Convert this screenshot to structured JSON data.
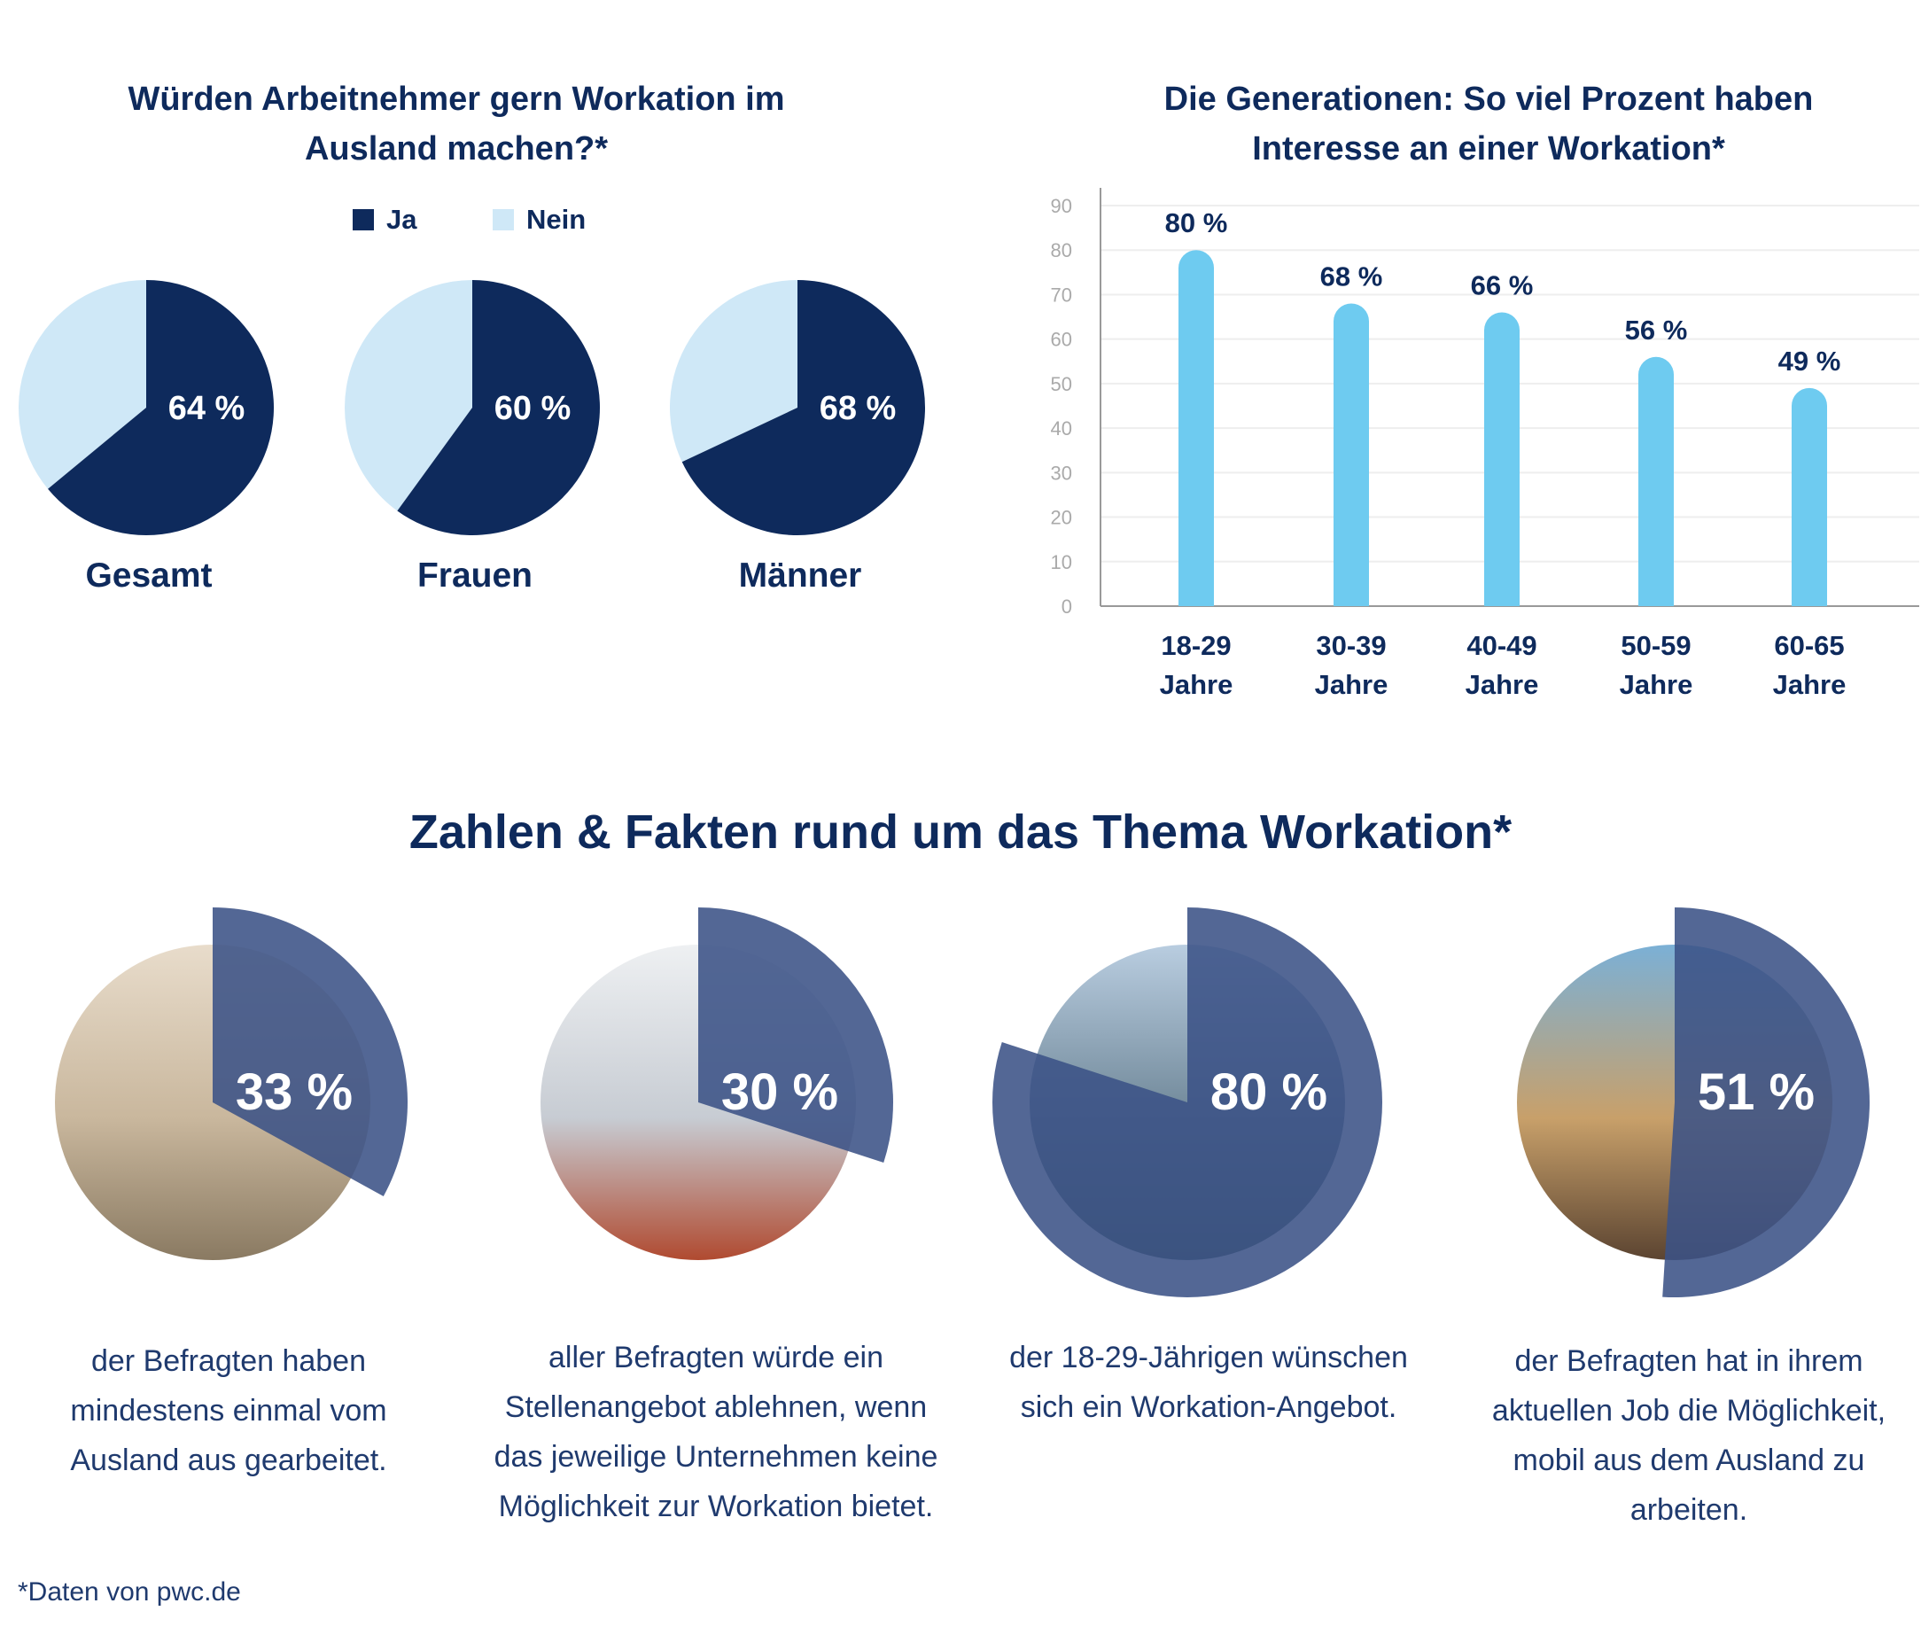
{
  "pies": {
    "title_line1": "Würden Arbeitnehmer gern Workation im",
    "title_line2": "Ausland machen?*",
    "legend": [
      {
        "label": "Ja",
        "color": "#0e2a5c"
      },
      {
        "label": "Nein",
        "color": "#cfe8f7"
      }
    ]
  },
  "bars": {
    "title_line1": "Die Generationen: So viel Prozent haben",
    "title_line2": "Interesse an einer Workation*",
    "bar_color": "#6ecbf0"
  },
  "facts": {
    "title": "Zahlen & Fakten rund um das Thema Workation*",
    "items": [
      {
        "value_label": "33 %",
        "value": 33,
        "text": [
          "der Befragten haben",
          "mindestens einmal vom",
          "Ausland aus gearbeitet."
        ]
      },
      {
        "value_label": "30 %",
        "value": 30,
        "text": [
          "aller Befragten würde ein",
          "Stellenangebot ablehnen, wenn",
          "das jeweilige Unternehmen keine",
          "Möglichkeit zur Workation bietet."
        ]
      },
      {
        "value_label": "80 %",
        "value": 80,
        "text": [
          "der 18-29-Jährigen wünschen",
          "sich ein Workation-Angebot."
        ]
      },
      {
        "value_label": "51 %",
        "value": 51,
        "text": [
          "der Befragten hat in ihrem",
          "aktuellen Job die Möglichkeit,",
          "mobil aus dem Ausland zu",
          "arbeiten."
        ]
      }
    ],
    "overlay_color": "#3b5286"
  },
  "footnote": "*Daten von pwc.de",
  "chart_data": [
    {
      "type": "pie",
      "title": "Würden Arbeitnehmer gern Workation im Ausland machen?*",
      "legend": [
        "Ja",
        "Nein"
      ],
      "pies": [
        {
          "name": "Gesamt",
          "ja": 64,
          "nein": 36,
          "label": "64 %"
        },
        {
          "name": "Frauen",
          "ja": 60,
          "nein": 40,
          "label": "60 %"
        },
        {
          "name": "Männer",
          "ja": 68,
          "nein": 32,
          "label": "68 %"
        }
      ]
    },
    {
      "type": "bar",
      "title": "Die Generationen: So viel Prozent haben Interesse an einer Workation*",
      "categories": [
        [
          "18-29",
          "Jahre"
        ],
        [
          "30-39",
          "Jahre"
        ],
        [
          "40-49",
          "Jahre"
        ],
        [
          "50-59",
          "Jahre"
        ],
        [
          "60-65",
          "Jahre"
        ]
      ],
      "values": [
        80,
        68,
        66,
        56,
        49
      ],
      "data_labels": [
        "80 %",
        "68 %",
        "66 %",
        "56 %",
        "49 %"
      ],
      "yticks": [
        0,
        10,
        20,
        30,
        40,
        50,
        60,
        70,
        80,
        90
      ],
      "ylim": [
        0,
        90
      ],
      "grid": true
    }
  ]
}
